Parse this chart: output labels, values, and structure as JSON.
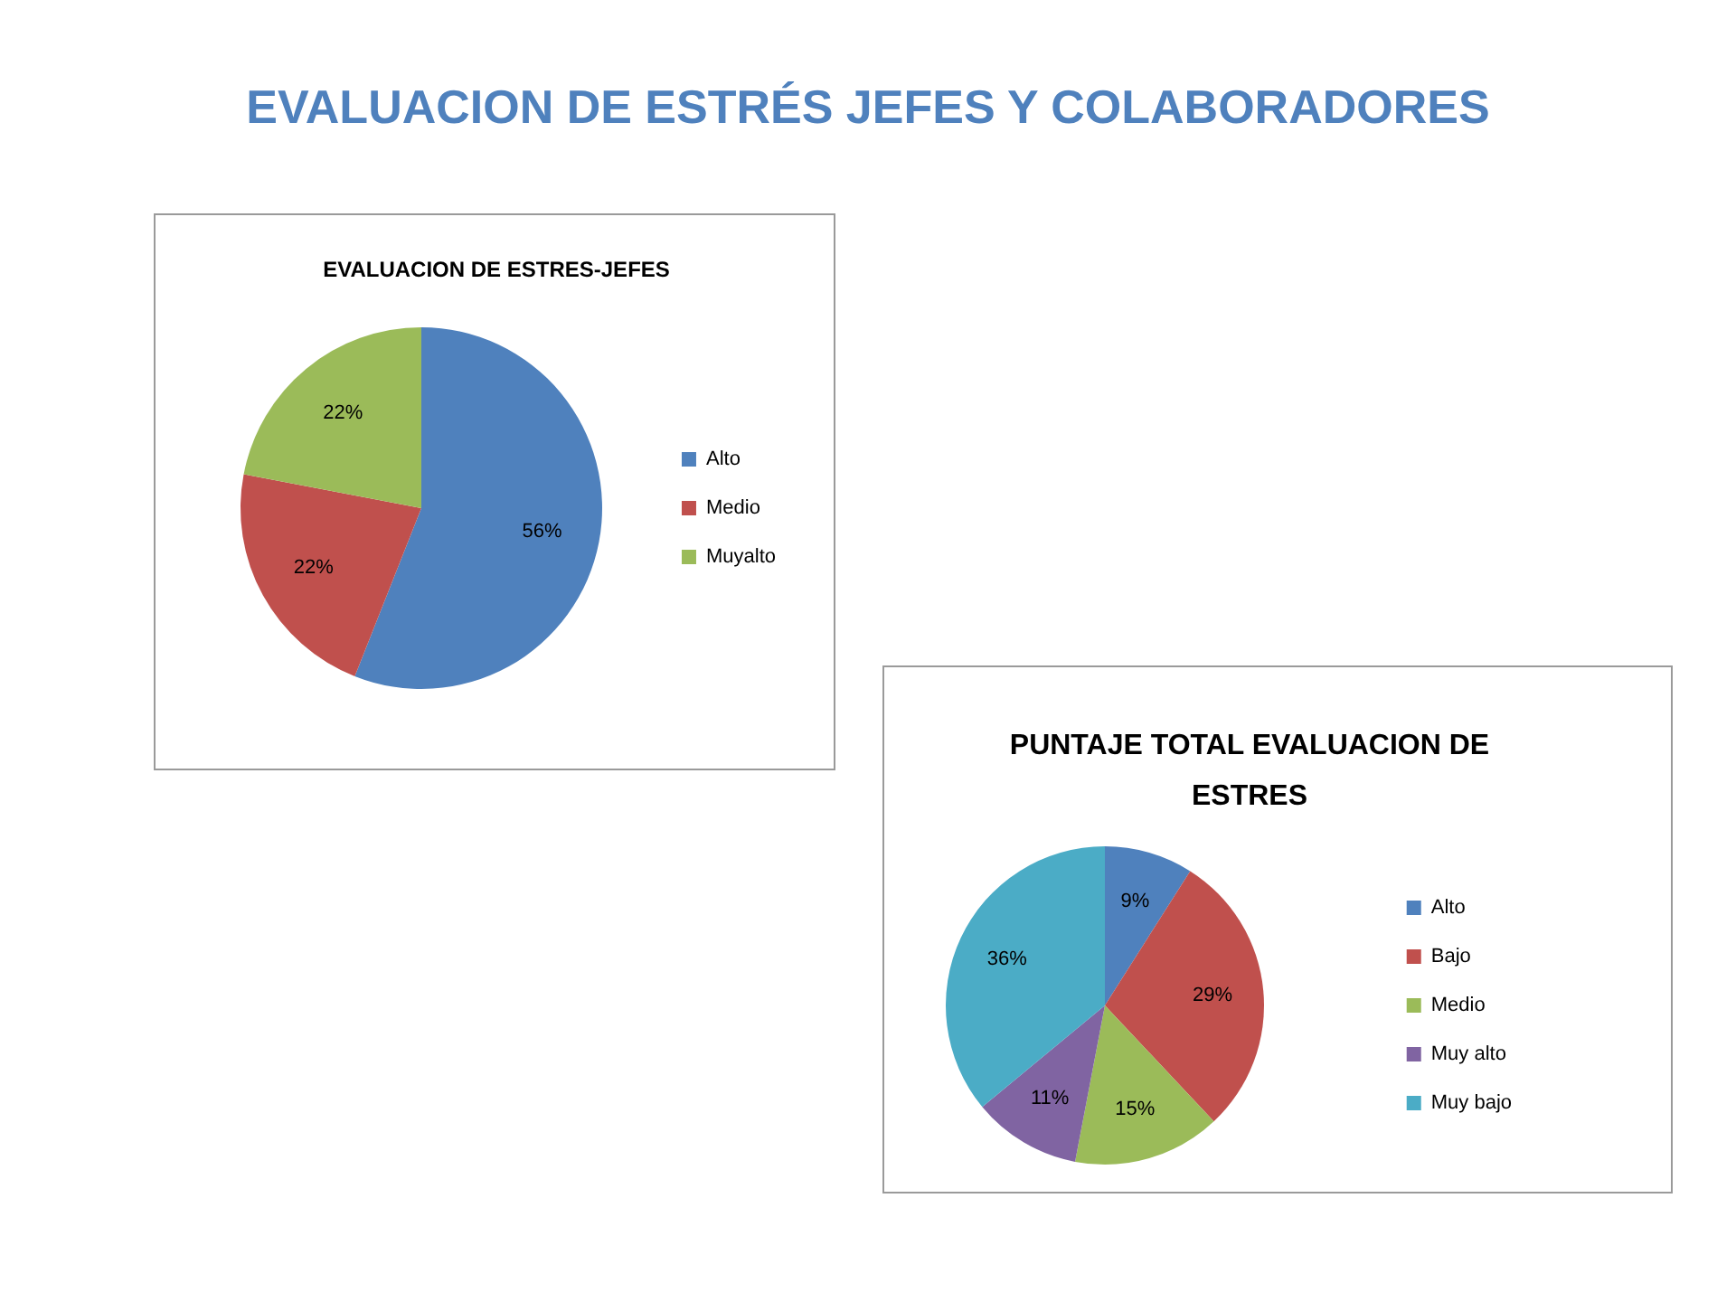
{
  "chart_data": [
    {
      "type": "pie",
      "title": "EVALUACION DE ESTRES-JEFES",
      "annotations": [
        "EVALUACION DE ESTRÉS JEFES Y COLABORADORES"
      ],
      "categories": [
        "Alto",
        "Medio",
        "Muyalto"
      ],
      "values": [
        56,
        22,
        22
      ],
      "colors": [
        "#4f81bd",
        "#c0504d",
        "#9bbb59"
      ],
      "value_labels": [
        "56%",
        "22%",
        "22%"
      ],
      "legend": "right"
    },
    {
      "type": "pie",
      "title": "PUNTAJE TOTAL EVALUACION DE ESTRES",
      "categories": [
        "Alto",
        "Bajo",
        "Medio",
        "Muy alto",
        "Muy bajo"
      ],
      "values": [
        9,
        29,
        15,
        11,
        36
      ],
      "colors": [
        "#4f81bd",
        "#c0504d",
        "#9bbb59",
        "#8064a2",
        "#4bacc6"
      ],
      "value_labels": [
        "9%",
        "29%",
        "15%",
        "11%",
        "36%"
      ],
      "legend": "right"
    }
  ]
}
